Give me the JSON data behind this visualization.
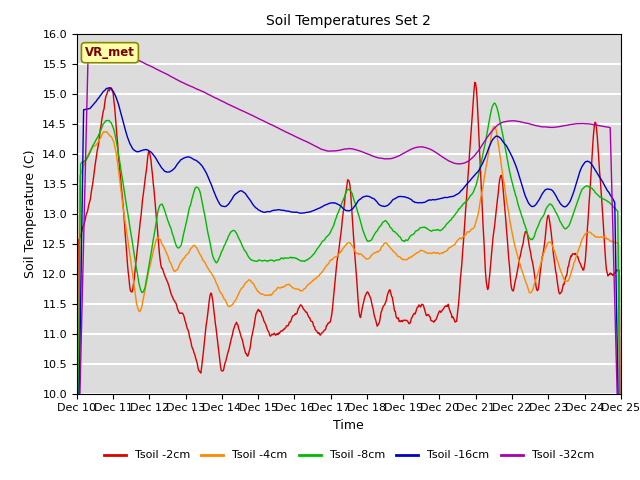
{
  "title": "Soil Temperatures Set 2",
  "xlabel": "Time",
  "ylabel": "Soil Temperature (C)",
  "ylim": [
    10.0,
    16.0
  ],
  "yticks": [
    10.0,
    10.5,
    11.0,
    11.5,
    12.0,
    12.5,
    13.0,
    13.5,
    14.0,
    14.5,
    15.0,
    15.5,
    16.0
  ],
  "background_color": "#dcdcdc",
  "fig_color": "#ffffff",
  "annotation_text": "VR_met",
  "series": [
    {
      "label": "Tsoil -2cm",
      "color": "#dd0000"
    },
    {
      "label": "Tsoil -4cm",
      "color": "#ff8800"
    },
    {
      "label": "Tsoil -8cm",
      "color": "#00bb00"
    },
    {
      "label": "Tsoil -16cm",
      "color": "#0000cc"
    },
    {
      "label": "Tsoil -32cm",
      "color": "#aa00aa"
    }
  ],
  "xtick_labels": [
    "Dec 10",
    "Dec 11",
    "Dec 12",
    "Dec 13",
    "Dec 14",
    "Dec 15",
    "Dec 16",
    "Dec 17",
    "Dec 18",
    "Dec 19",
    "Dec 20",
    "Dec 21",
    "Dec 22",
    "Dec 23",
    "Dec 24",
    "Dec 25"
  ],
  "n_days": 15,
  "pts_per_day": 48
}
